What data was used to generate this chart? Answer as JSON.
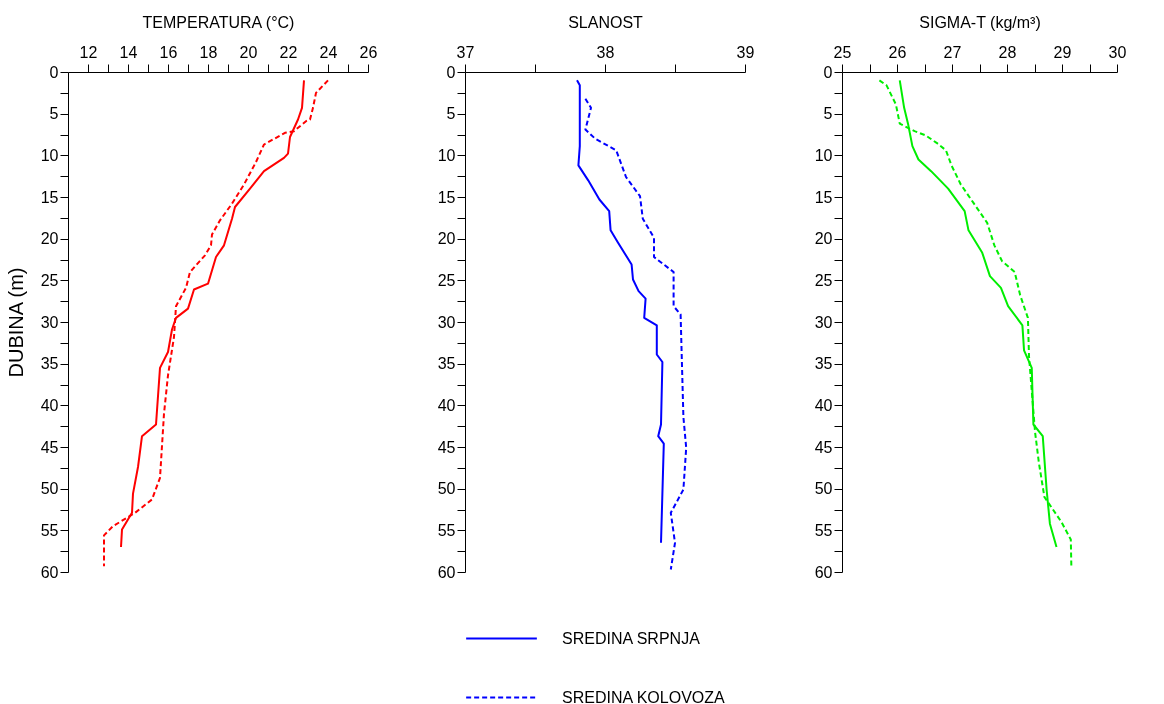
{
  "chart_data": [
    {
      "type": "line",
      "xlabel": "TEMPERATURA (°C)",
      "ylabel": "DUBINA (m)",
      "xlim": [
        11,
        26
      ],
      "xticks": [
        12,
        {
          "value": 13,
          "label": null
        },
        14,
        {
          "value": 15,
          "label": null
        },
        16,
        {
          "value": 17,
          "label": null
        },
        18,
        {
          "value": 19,
          "label": null
        },
        20,
        {
          "value": 21,
          "label": null
        },
        22,
        {
          "value": 23,
          "label": null
        },
        24,
        {
          "value": 25,
          "label": null
        },
        26
      ],
      "ylim": [
        60,
        0
      ],
      "yticks": [
        0,
        {
          "value": 2.5,
          "label": null
        },
        5,
        {
          "value": 7.5,
          "label": null
        },
        10,
        {
          "value": 12.5,
          "label": null
        },
        15,
        {
          "value": 17.5,
          "label": null
        },
        20,
        {
          "value": 22.5,
          "label": null
        },
        25,
        {
          "value": 27.5,
          "label": null
        },
        30,
        {
          "value": 32.5,
          "label": null
        },
        35,
        {
          "value": 37.5,
          "label": null
        },
        40,
        {
          "value": 42.5,
          "label": null
        },
        45,
        {
          "value": 47.5,
          "label": null
        },
        50,
        {
          "value": 52.5,
          "label": null
        },
        55,
        {
          "value": 57.5,
          "label": null
        },
        60
      ],
      "series": [
        {
          "color": "#ff0000",
          "line_style": "solid",
          "x": [
            22.8,
            22.7,
            22.5,
            22.1,
            22.0,
            21.8,
            20.8,
            20.1,
            19.35,
            19.2,
            18.8,
            18.4,
            18.0,
            17.3,
            17.0,
            16.4,
            16.2,
            16.0,
            15.6,
            15.4,
            14.7,
            14.5,
            14.25,
            14.2,
            13.7,
            13.65
          ],
          "values": [
            1.0,
            4.3,
            5.7,
            7.8,
            9.8,
            10.3,
            11.9,
            14.0,
            16.2,
            17.6,
            20.8,
            22.2,
            25.4,
            26.1,
            28.4,
            29.5,
            30.9,
            33.6,
            35.5,
            42.3,
            43.7,
            47.4,
            50.6,
            52.9,
            54.9,
            57.0
          ]
        },
        {
          "color": "#ff0000",
          "line_style": "dashed",
          "x": [
            24.0,
            23.4,
            23.25,
            23.1,
            22.9,
            22.3,
            21.85,
            20.8,
            20.4,
            19.8,
            19.2,
            18.6,
            18.2,
            18.15,
            17.85,
            17.1,
            16.9,
            16.4,
            16.3,
            16.0,
            15.8,
            15.6,
            15.2,
            14.35,
            13.25,
            12.8,
            12.8
          ],
          "values": [
            1.0,
            2.5,
            4.3,
            5.7,
            5.9,
            7.1,
            7.3,
            8.7,
            10.8,
            13.5,
            15.8,
            17.8,
            19.5,
            20.8,
            22.0,
            24.0,
            25.9,
            28.1,
            31.8,
            36.4,
            41.0,
            48.7,
            51.3,
            52.9,
            54.5,
            55.6,
            59.3
          ]
        }
      ]
    },
    {
      "type": "line",
      "xlabel": "SLANOST",
      "xlim": [
        37,
        39
      ],
      "xticks": [
        37,
        {
          "value": 37.5,
          "label": null
        },
        38,
        {
          "value": 38.5,
          "label": null
        },
        39
      ],
      "ylim": [
        60,
        0
      ],
      "yticks": [
        0,
        {
          "value": 2.5,
          "label": null
        },
        5,
        {
          "value": 7.5,
          "label": null
        },
        10,
        {
          "value": 12.5,
          "label": null
        },
        15,
        {
          "value": 17.5,
          "label": null
        },
        20,
        {
          "value": 22.5,
          "label": null
        },
        25,
        {
          "value": 27.5,
          "label": null
        },
        30,
        {
          "value": 32.5,
          "label": null
        },
        35,
        {
          "value": 37.5,
          "label": null
        },
        40,
        {
          "value": 42.5,
          "label": null
        },
        45,
        {
          "value": 47.5,
          "label": null
        },
        50,
        {
          "value": 52.5,
          "label": null
        },
        55,
        {
          "value": 57.5,
          "label": null
        },
        60
      ],
      "legend": "bottom",
      "series": [
        {
          "name": "SREDINA SRPNJA",
          "color": "#0000ff",
          "line_style": "solid",
          "x": [
            37.8,
            37.82,
            37.82,
            37.81,
            37.88,
            37.96,
            38.03,
            38.04,
            38.09,
            38.19,
            38.2,
            38.24,
            38.29,
            38.28,
            38.37,
            38.37,
            38.41,
            38.4,
            38.38,
            38.42,
            38.4
          ],
          "values": [
            1.0,
            1.6,
            8.9,
            11.2,
            13.0,
            15.3,
            16.7,
            19.0,
            20.4,
            23.1,
            24.9,
            26.3,
            27.2,
            29.5,
            30.4,
            33.9,
            34.8,
            42.3,
            43.7,
            44.6,
            56.5
          ]
        },
        {
          "name": "SREDINA KOLOVOZA",
          "color": "#0000ff",
          "line_style": "dashed",
          "x": [
            37.86,
            37.9,
            37.86,
            37.93,
            38.08,
            38.15,
            38.25,
            38.27,
            38.35,
            38.35,
            38.49,
            38.49,
            38.54,
            38.56,
            38.58,
            38.56,
            38.47,
            38.5,
            38.47
          ],
          "values": [
            3.2,
            4.3,
            6.9,
            8.0,
            9.4,
            12.6,
            14.9,
            17.6,
            19.9,
            22.2,
            24.0,
            28.1,
            29.1,
            41.4,
            45.1,
            50.1,
            52.9,
            56.5,
            59.7
          ]
        }
      ]
    },
    {
      "type": "line",
      "xlabel": "SIGMA-T (kg/m³)",
      "xlim": [
        25,
        30
      ],
      "xticks": [
        25,
        {
          "value": 25.5,
          "label": null
        },
        26,
        {
          "value": 26.5,
          "label": null
        },
        27,
        {
          "value": 27.5,
          "label": null
        },
        28,
        {
          "value": 28.5,
          "label": null
        },
        29,
        {
          "value": 29.5,
          "label": null
        },
        30
      ],
      "ylim": [
        60,
        0
      ],
      "yticks": [
        0,
        {
          "value": 2.5,
          "label": null
        },
        5,
        {
          "value": 7.5,
          "label": null
        },
        10,
        {
          "value": 12.5,
          "label": null
        },
        15,
        {
          "value": 17.5,
          "label": null
        },
        20,
        {
          "value": 22.5,
          "label": null
        },
        25,
        {
          "value": 27.5,
          "label": null
        },
        30,
        {
          "value": 32.5,
          "label": null
        },
        35,
        {
          "value": 37.5,
          "label": null
        },
        40,
        {
          "value": 42.5,
          "label": null
        },
        45,
        {
          "value": 47.5,
          "label": null
        },
        50,
        {
          "value": 52.5,
          "label": null
        },
        55,
        {
          "value": 57.5,
          "label": null
        },
        60
      ],
      "series": [
        {
          "color": "#00ee00",
          "line_style": "solid",
          "x": [
            26.05,
            26.13,
            26.2,
            26.28,
            26.39,
            26.62,
            26.93,
            27.23,
            27.3,
            27.55,
            27.69,
            27.89,
            28.02,
            28.28,
            28.31,
            28.45,
            28.48,
            28.65,
            28.72,
            28.78,
            28.9
          ],
          "values": [
            1.0,
            4.3,
            6.2,
            8.9,
            10.5,
            11.9,
            14.0,
            16.7,
            19.0,
            21.7,
            24.5,
            25.9,
            28.1,
            30.4,
            33.4,
            35.5,
            42.3,
            43.7,
            50.1,
            54.2,
            57.0
          ]
        },
        {
          "color": "#00ee00",
          "line_style": "dashed",
          "x": [
            25.68,
            25.81,
            25.98,
            26.05,
            26.32,
            26.52,
            26.72,
            26.89,
            26.99,
            27.16,
            27.4,
            27.64,
            27.77,
            27.91,
            28.14,
            28.24,
            28.38,
            28.4,
            28.51,
            28.58,
            28.68,
            28.99,
            29.16,
            29.17
          ],
          "values": [
            1.0,
            1.6,
            3.9,
            6.2,
            7.1,
            7.6,
            8.5,
            9.4,
            11.2,
            13.5,
            15.8,
            18.1,
            20.8,
            22.7,
            24.0,
            26.8,
            29.5,
            34.1,
            43.2,
            46.9,
            51.0,
            54.0,
            56.1,
            59.3
          ]
        }
      ]
    }
  ]
}
